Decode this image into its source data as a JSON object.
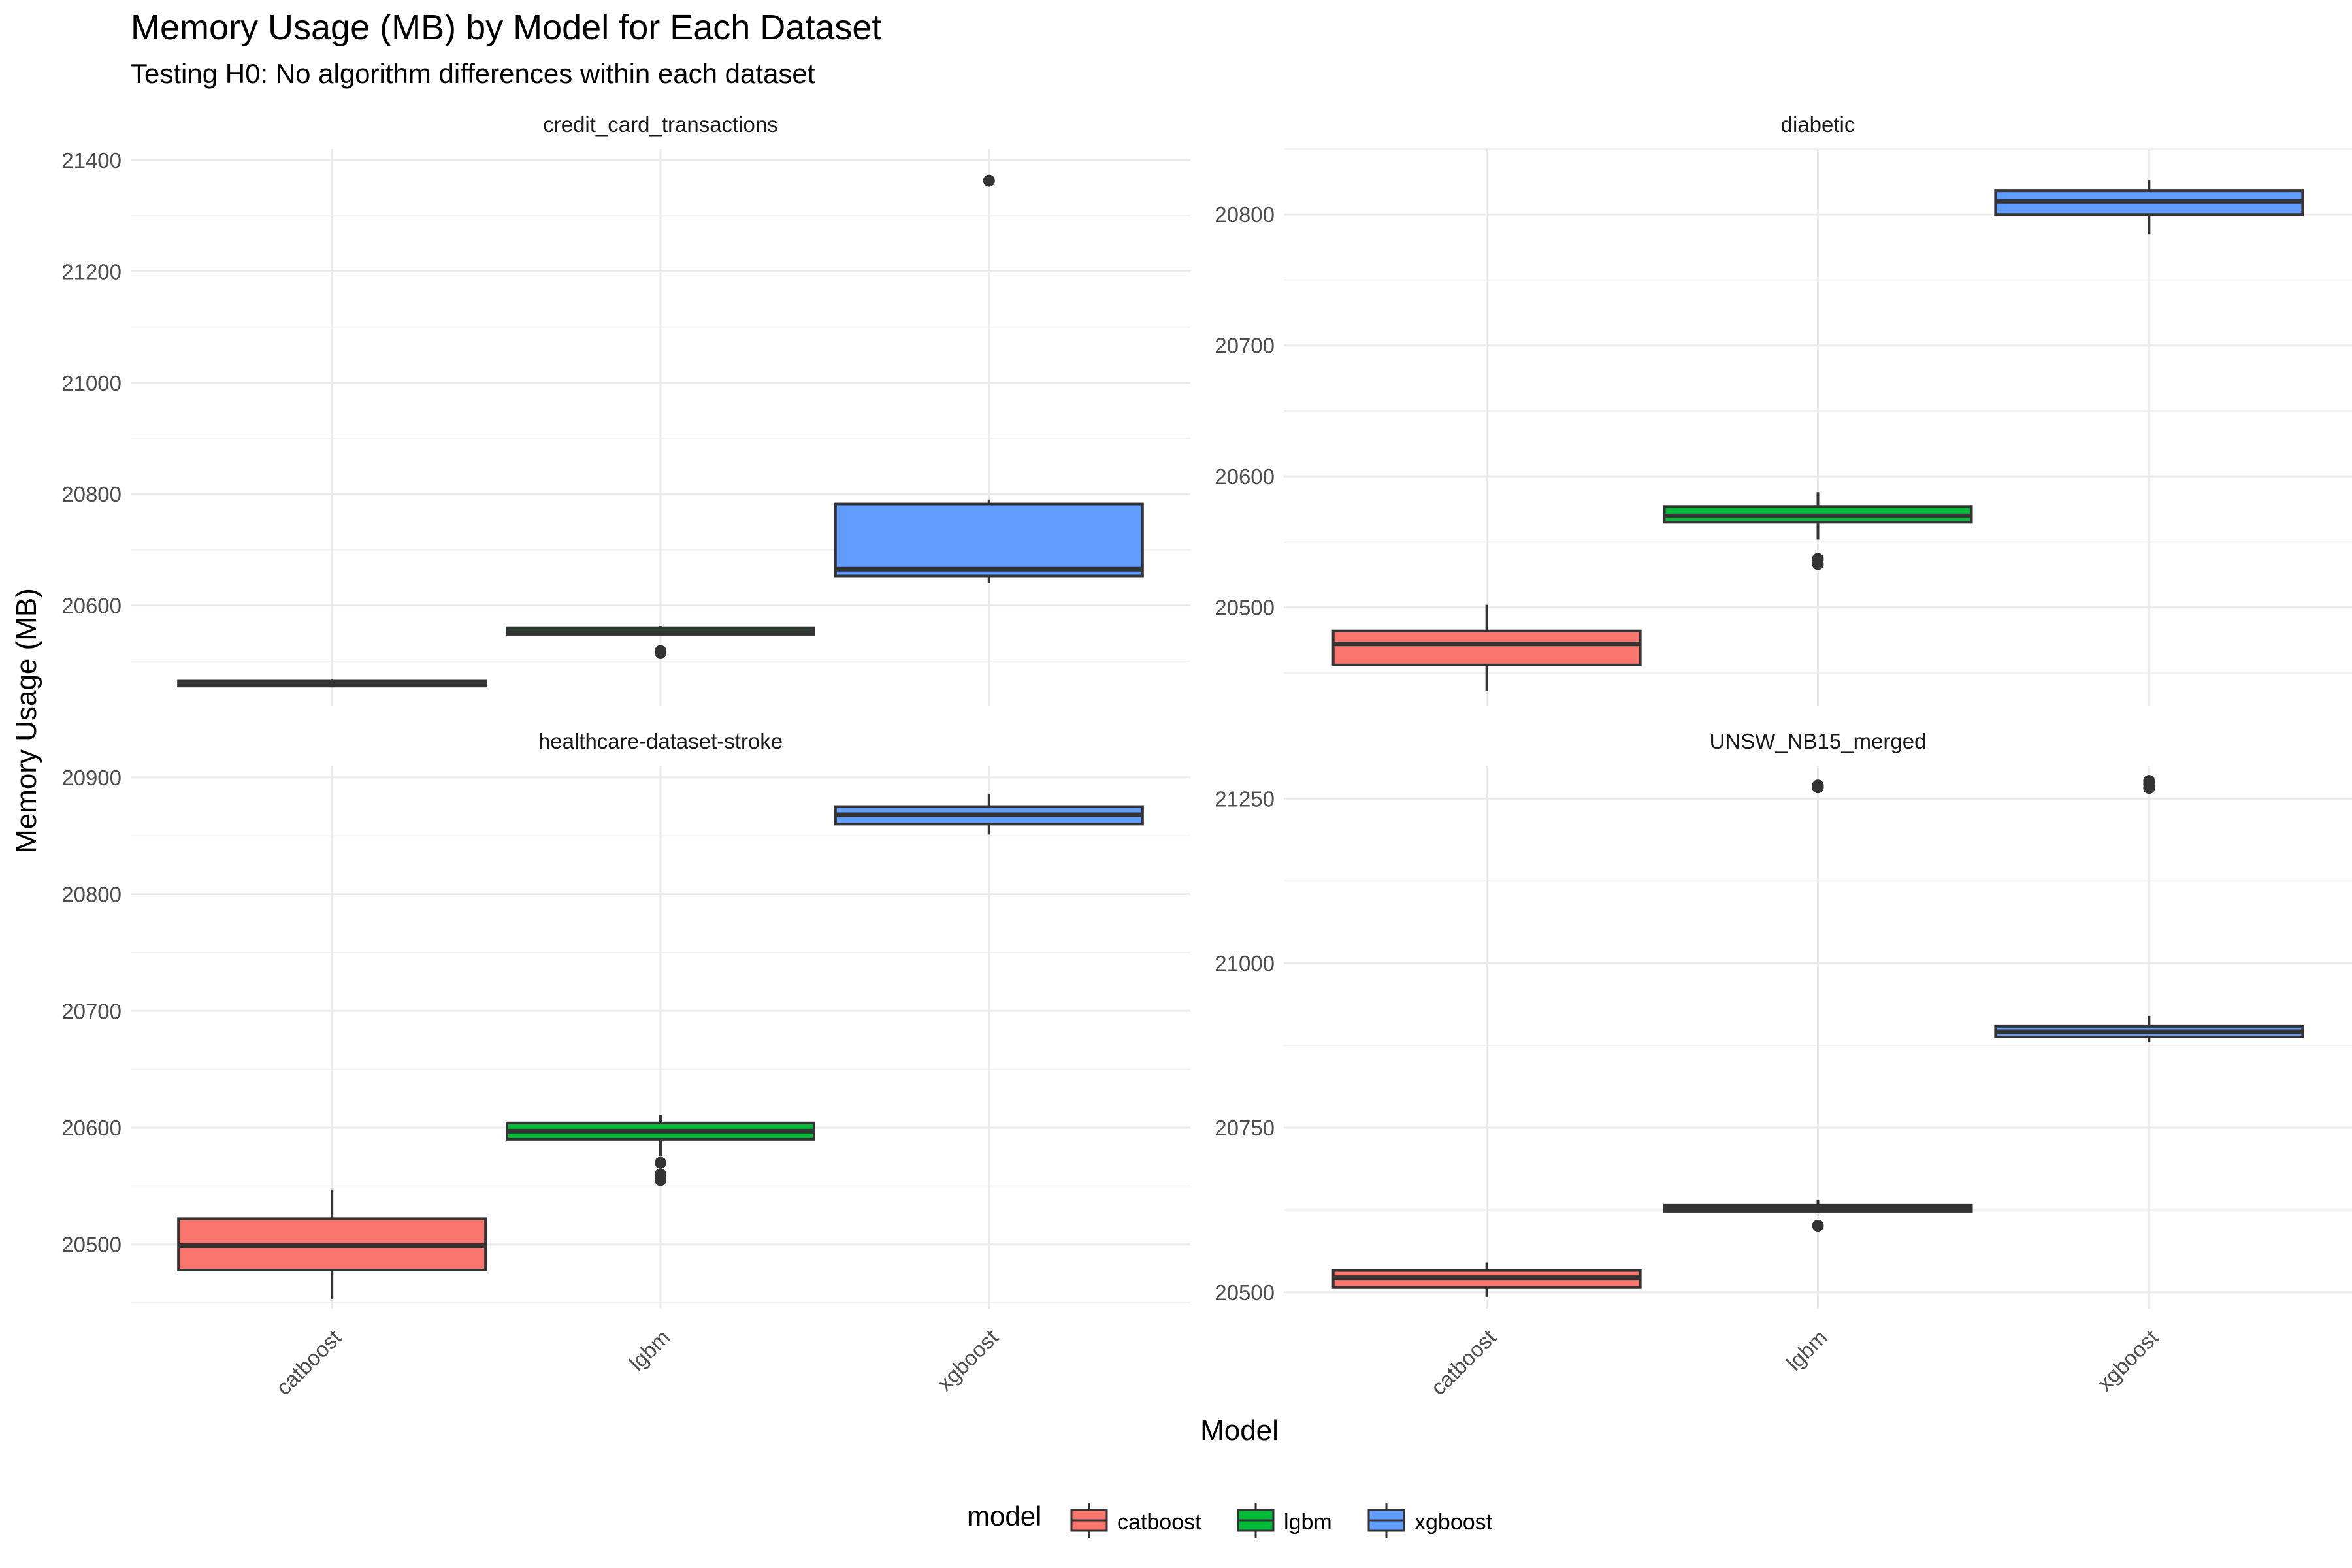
{
  "title": "Memory Usage (MB) by Model for Each Dataset",
  "subtitle": "Testing H0: No algorithm differences within each dataset",
  "x_axis_title": "Model",
  "y_axis_title": "Memory Usage (MB)",
  "legend": {
    "title": "model",
    "entries": [
      {
        "label": "catboost",
        "color": "#F8766D"
      },
      {
        "label": "lgbm",
        "color": "#00BA38"
      },
      {
        "label": "xgboost",
        "color": "#619CFF"
      }
    ]
  },
  "chart_data": [
    {
      "type": "boxplot",
      "facet": "credit_card_transactions",
      "categories": [
        "catboost",
        "lgbm",
        "xgboost"
      ],
      "ylim": [
        20420,
        21420
      ],
      "yticks": [
        20600,
        20800,
        21000,
        21200,
        21400
      ],
      "boxes": [
        {
          "model": "catboost",
          "lower": 20455,
          "q1": 20455,
          "median": 20458,
          "q3": 20464,
          "upper": 20467,
          "outliers": [],
          "color": "#F8766D"
        },
        {
          "model": "lgbm",
          "lower": 20548,
          "q1": 20548,
          "median": 20553,
          "q3": 20560,
          "upper": 20563,
          "outliers": [
            20515,
            20518
          ],
          "color": "#00BA38"
        },
        {
          "model": "xgboost",
          "lower": 20640,
          "q1": 20653,
          "median": 20665,
          "q3": 20782,
          "upper": 20790,
          "outliers": [
            21363
          ],
          "color": "#619CFF"
        }
      ]
    },
    {
      "type": "boxplot",
      "facet": "diabetic",
      "categories": [
        "catboost",
        "lgbm",
        "xgboost"
      ],
      "ylim": [
        20425,
        20850
      ],
      "yticks": [
        20500,
        20600,
        20700,
        20800
      ],
      "boxes": [
        {
          "model": "catboost",
          "lower": 20436,
          "q1": 20456,
          "median": 20472,
          "q3": 20482,
          "upper": 20502,
          "outliers": [],
          "color": "#F8766D"
        },
        {
          "model": "lgbm",
          "lower": 20552,
          "q1": 20565,
          "median": 20570,
          "q3": 20577,
          "upper": 20588,
          "outliers": [
            20533,
            20537
          ],
          "color": "#00BA38"
        },
        {
          "model": "xgboost",
          "lower": 20785,
          "q1": 20800,
          "median": 20810,
          "q3": 20818,
          "upper": 20826,
          "outliers": [],
          "color": "#619CFF"
        }
      ]
    },
    {
      "type": "boxplot",
      "facet": "healthcare-dataset-stroke",
      "categories": [
        "catboost",
        "lgbm",
        "xgboost"
      ],
      "ylim": [
        20445,
        20910
      ],
      "yticks": [
        20500,
        20600,
        20700,
        20800,
        20900
      ],
      "boxes": [
        {
          "model": "catboost",
          "lower": 20453,
          "q1": 20478,
          "median": 20499,
          "q3": 20522,
          "upper": 20547,
          "outliers": [],
          "color": "#F8766D"
        },
        {
          "model": "lgbm",
          "lower": 20576,
          "q1": 20590,
          "median": 20597,
          "q3": 20604,
          "upper": 20611,
          "outliers": [
            20555,
            20560,
            20570
          ],
          "color": "#00BA38"
        },
        {
          "model": "xgboost",
          "lower": 20851,
          "q1": 20860,
          "median": 20868,
          "q3": 20875,
          "upper": 20886,
          "outliers": [],
          "color": "#619CFF"
        }
      ]
    },
    {
      "type": "boxplot",
      "facet": "UNSW_NB15_merged",
      "categories": [
        "catboost",
        "lgbm",
        "xgboost"
      ],
      "ylim": [
        20475,
        21300
      ],
      "yticks": [
        20500,
        20750,
        21000,
        21250
      ],
      "boxes": [
        {
          "model": "catboost",
          "lower": 20493,
          "q1": 20507,
          "median": 20522,
          "q3": 20533,
          "upper": 20545,
          "outliers": [],
          "color": "#F8766D"
        },
        {
          "model": "lgbm",
          "lower": 20620,
          "q1": 20623,
          "median": 20627,
          "q3": 20632,
          "upper": 20640,
          "outliers": [
            20601,
            21267,
            21270
          ],
          "color": "#00BA38"
        },
        {
          "model": "xgboost",
          "lower": 20880,
          "q1": 20888,
          "median": 20896,
          "q3": 20904,
          "upper": 20920,
          "outliers": [
            21266,
            21272,
            21277
          ],
          "color": "#619CFF"
        }
      ]
    }
  ]
}
